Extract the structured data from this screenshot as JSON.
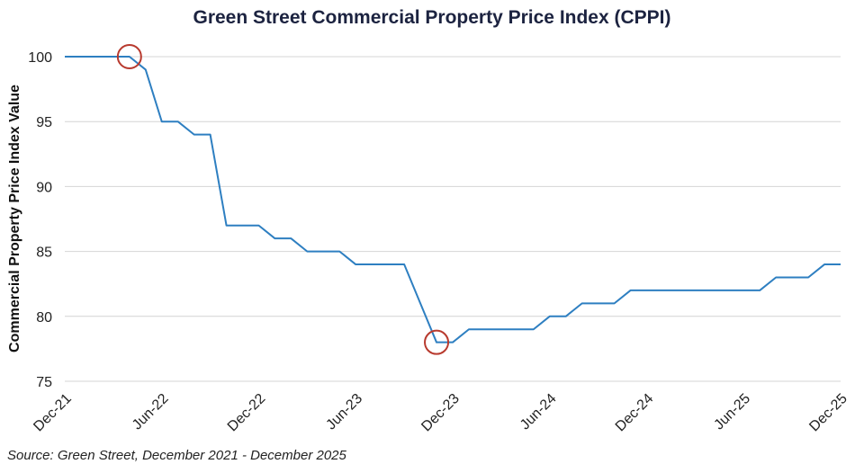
{
  "chart_data": {
    "type": "line",
    "title": "Green Street Commercial Property Price Index (CPPI)",
    "ylabel": "Commercial Property Price Index Value",
    "xlabel": "",
    "source": "Source: Green Street, December 2021 - December 2025",
    "ylim": [
      75,
      100
    ],
    "yticks": [
      100,
      95,
      90,
      85,
      80,
      75
    ],
    "xticks": [
      "Dec-21",
      "Jun-22",
      "Dec-22",
      "Jun-23",
      "Dec-23",
      "Jun-24",
      "Dec-24",
      "Jun-25",
      "Dec-25"
    ],
    "grid": true,
    "series": [
      {
        "name": "CPPI",
        "color": "#2e7fc1",
        "x": [
          0,
          1,
          2,
          3,
          4,
          5,
          6,
          7,
          8,
          9,
          10,
          11,
          12,
          13,
          14,
          15,
          16,
          17,
          18,
          19,
          20,
          21,
          22,
          23,
          24,
          25,
          26,
          27,
          28,
          29,
          30,
          31,
          32,
          33,
          34,
          35,
          36,
          37,
          38,
          39,
          40,
          41,
          42,
          43,
          44,
          45,
          46,
          47,
          48
        ],
        "x_unit": "months since Dec-21",
        "values": [
          100,
          100,
          100,
          100,
          100,
          99,
          95,
          95,
          94,
          94,
          87,
          87,
          87,
          86,
          86,
          85,
          85,
          85,
          84,
          84,
          84,
          84,
          81,
          78,
          78,
          79,
          79,
          79,
          79,
          79,
          80,
          80,
          81,
          81,
          81,
          82,
          82,
          82,
          82,
          82,
          82,
          82,
          82,
          82,
          83,
          83,
          83,
          84,
          84
        ]
      }
    ],
    "annotations": [
      {
        "type": "circle",
        "x": 4,
        "y": 100,
        "color": "#b83a2e"
      },
      {
        "type": "circle",
        "x": 23,
        "y": 78,
        "color": "#b83a2e"
      }
    ]
  }
}
